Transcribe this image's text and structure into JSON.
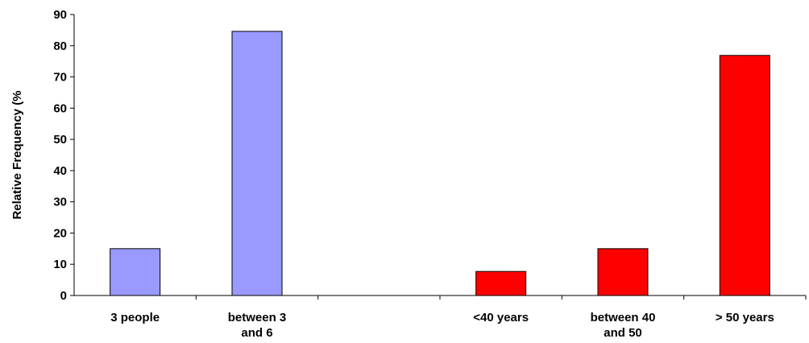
{
  "chart_data": {
    "type": "bar",
    "title": "",
    "xlabel": "",
    "ylabel": "Relative Frequency (%",
    "ylim": [
      0,
      90
    ],
    "y_ticks": [
      0,
      10,
      20,
      30,
      40,
      50,
      60,
      70,
      80,
      90
    ],
    "grid": false,
    "legend": "none",
    "categories": [
      {
        "label": [
          "3 people"
        ],
        "value": 15,
        "color": "#9999ff"
      },
      {
        "label": [
          "between 3",
          "and 6"
        ],
        "value": 84.6,
        "color": "#9999ff"
      },
      {
        "label": [
          ""
        ],
        "value": null,
        "color": "#9999ff"
      },
      {
        "label": [
          "<40 years"
        ],
        "value": 7.7,
        "color": "#ff0000"
      },
      {
        "label": [
          "between 40",
          "and 50"
        ],
        "value": 15,
        "color": "#ff0000"
      },
      {
        "label": [
          "> 50 years"
        ],
        "value": 76.9,
        "color": "#ff0000"
      }
    ]
  }
}
